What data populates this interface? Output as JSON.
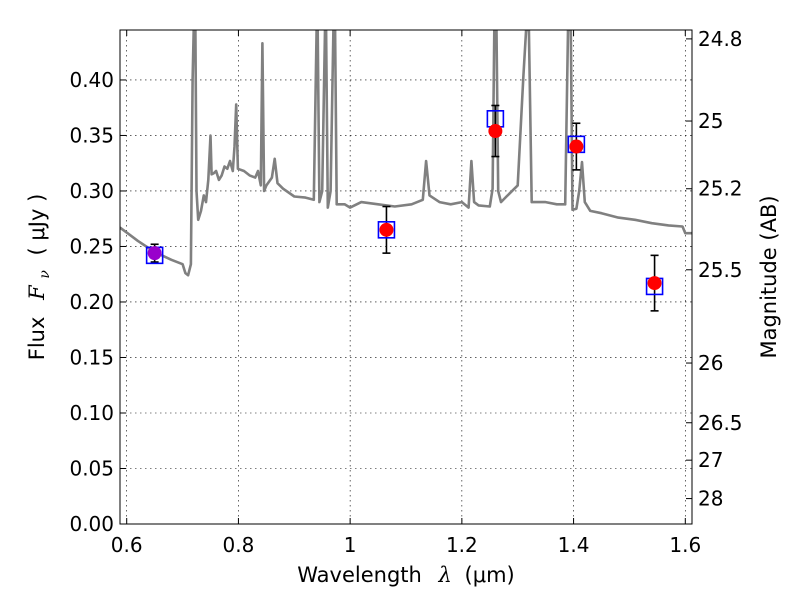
{
  "chart_data": {
    "type": "line",
    "xlabel_prefix": "Wavelength",
    "xlabel_symbol": "λ",
    "xlabel_unit": "(μm)",
    "ylabel_prefix": "Flux",
    "ylabel_symbol": "F",
    "ylabel_subscript": "ν",
    "ylabel_unit": "( μJy )",
    "y2label": "Magnitude (AB)",
    "xlim": [
      0.588,
      1.612
    ],
    "ylim": [
      0.0,
      0.445
    ],
    "grid": true,
    "x_ticks": [
      0.6,
      0.8,
      1.0,
      1.2,
      1.4,
      1.6
    ],
    "x_tick_labels": [
      "0.6",
      "0.8",
      "1",
      "1.2",
      "1.4",
      "1.6"
    ],
    "y_ticks": [
      0.0,
      0.05,
      0.1,
      0.15,
      0.2,
      0.25,
      0.3,
      0.35,
      0.4
    ],
    "y_tick_labels": [
      "0.00",
      "0.05",
      "0.10",
      "0.15",
      "0.20",
      "0.25",
      "0.30",
      "0.35",
      "0.40"
    ],
    "mag_ticks": [
      {
        "label": "24.8",
        "flux": 0.437
      },
      {
        "label": "25",
        "flux": 0.363
      },
      {
        "label": "25.2",
        "flux": 0.302
      },
      {
        "label": "25.5",
        "flux": 0.229
      },
      {
        "label": "26",
        "flux": 0.145
      },
      {
        "label": "26.5",
        "flux": 0.0912
      },
      {
        "label": "27",
        "flux": 0.0575
      },
      {
        "label": "28",
        "flux": 0.0229
      }
    ],
    "model_sed": {
      "name": "model spectrum",
      "color": "#808080",
      "points": [
        [
          0.588,
          0.267
        ],
        [
          0.62,
          0.255
        ],
        [
          0.65,
          0.245
        ],
        [
          0.68,
          0.238
        ],
        [
          0.7,
          0.234
        ],
        [
          0.705,
          0.226
        ],
        [
          0.71,
          0.224
        ],
        [
          0.715,
          0.234
        ],
        [
          0.718,
          0.4
        ],
        [
          0.72,
          0.445
        ],
        [
          0.723,
          0.445
        ],
        [
          0.725,
          0.3
        ],
        [
          0.728,
          0.274
        ],
        [
          0.733,
          0.282
        ],
        [
          0.738,
          0.296
        ],
        [
          0.742,
          0.29
        ],
        [
          0.746,
          0.31
        ],
        [
          0.75,
          0.35
        ],
        [
          0.752,
          0.315
        ],
        [
          0.756,
          0.316
        ],
        [
          0.76,
          0.318
        ],
        [
          0.765,
          0.31
        ],
        [
          0.77,
          0.314
        ],
        [
          0.775,
          0.322
        ],
        [
          0.78,
          0.32
        ],
        [
          0.785,
          0.327
        ],
        [
          0.79,
          0.318
        ],
        [
          0.793,
          0.34
        ],
        [
          0.796,
          0.378
        ],
        [
          0.799,
          0.32
        ],
        [
          0.81,
          0.318
        ],
        [
          0.82,
          0.314
        ],
        [
          0.83,
          0.312
        ],
        [
          0.835,
          0.318
        ],
        [
          0.84,
          0.305
        ],
        [
          0.843,
          0.433
        ],
        [
          0.846,
          0.3
        ],
        [
          0.85,
          0.305
        ],
        [
          0.86,
          0.312
        ],
        [
          0.865,
          0.329
        ],
        [
          0.87,
          0.307
        ],
        [
          0.88,
          0.302
        ],
        [
          0.9,
          0.295
        ],
        [
          0.92,
          0.294
        ],
        [
          0.935,
          0.292
        ],
        [
          0.94,
          0.445
        ],
        [
          0.942,
          0.445
        ],
        [
          0.945,
          0.29
        ],
        [
          0.95,
          0.3
        ],
        [
          0.955,
          0.445
        ],
        [
          0.957,
          0.445
        ],
        [
          0.96,
          0.285
        ],
        [
          0.965,
          0.3
        ],
        [
          0.97,
          0.445
        ],
        [
          0.973,
          0.445
        ],
        [
          0.976,
          0.288
        ],
        [
          0.99,
          0.288
        ],
        [
          1.0,
          0.285
        ],
        [
          1.02,
          0.29
        ],
        [
          1.05,
          0.288
        ],
        [
          1.08,
          0.286
        ],
        [
          1.11,
          0.288
        ],
        [
          1.13,
          0.292
        ],
        [
          1.136,
          0.327
        ],
        [
          1.142,
          0.296
        ],
        [
          1.16,
          0.29
        ],
        [
          1.18,
          0.288
        ],
        [
          1.2,
          0.29
        ],
        [
          1.212,
          0.285
        ],
        [
          1.217,
          0.327
        ],
        [
          1.222,
          0.29
        ],
        [
          1.23,
          0.287
        ],
        [
          1.25,
          0.286
        ],
        [
          1.255,
          0.302
        ],
        [
          1.258,
          0.445
        ],
        [
          1.262,
          0.445
        ],
        [
          1.265,
          0.3
        ],
        [
          1.27,
          0.29
        ],
        [
          1.28,
          0.295
        ],
        [
          1.3,
          0.305
        ],
        [
          1.31,
          0.402
        ],
        [
          1.315,
          0.445
        ],
        [
          1.32,
          0.445
        ],
        [
          1.325,
          0.29
        ],
        [
          1.35,
          0.29
        ],
        [
          1.37,
          0.288
        ],
        [
          1.385,
          0.288
        ],
        [
          1.39,
          0.445
        ],
        [
          1.395,
          0.445
        ],
        [
          1.398,
          0.283
        ],
        [
          1.405,
          0.284
        ],
        [
          1.41,
          0.3
        ],
        [
          1.415,
          0.326
        ],
        [
          1.42,
          0.29
        ],
        [
          1.43,
          0.282
        ],
        [
          1.45,
          0.28
        ],
        [
          1.48,
          0.276
        ],
        [
          1.51,
          0.274
        ],
        [
          1.54,
          0.271
        ],
        [
          1.57,
          0.269
        ],
        [
          1.595,
          0.268
        ],
        [
          1.6,
          0.262
        ],
        [
          1.612,
          0.262
        ]
      ]
    },
    "observed": {
      "name": "observed photometry",
      "color": "#ff0000",
      "points": [
        {
          "x": 0.65,
          "y": 0.244,
          "err": 0.008
        },
        {
          "x": 1.065,
          "y": 0.265,
          "err": 0.021
        },
        {
          "x": 1.26,
          "y": 0.354,
          "err": 0.023
        },
        {
          "x": 1.405,
          "y": 0.34,
          "err": 0.021
        },
        {
          "x": 1.545,
          "y": 0.217,
          "err": 0.025
        }
      ]
    },
    "model_photometry": {
      "name": "model photometry",
      "color": "#0000ff",
      "points": [
        {
          "x": 0.65,
          "y": 0.242
        },
        {
          "x": 1.065,
          "y": 0.265
        },
        {
          "x": 1.26,
          "y": 0.365
        },
        {
          "x": 1.405,
          "y": 0.342
        },
        {
          "x": 1.545,
          "y": 0.214
        }
      ]
    },
    "overlap_color": "#9900cc"
  }
}
